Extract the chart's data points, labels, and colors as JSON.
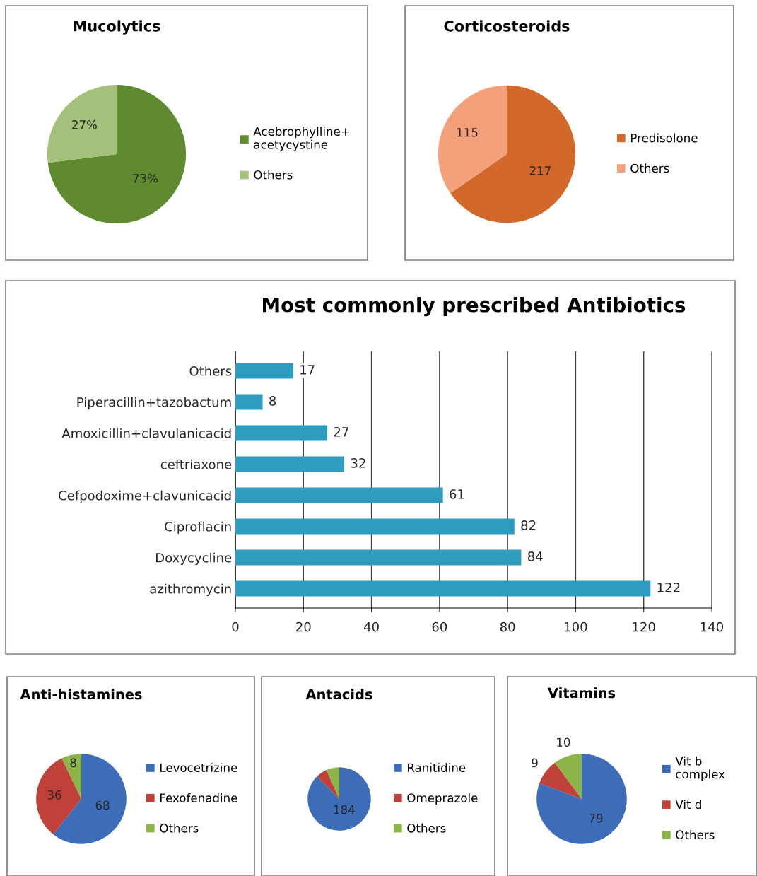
{
  "chart_data": [
    {
      "type": "pie",
      "title": "Mucolytics",
      "categories": [
        "Acebrophylline+ acetycystine",
        "Others"
      ],
      "values": [
        73,
        27
      ],
      "colors": [
        "#5f8a2f",
        "#a3c17a"
      ],
      "value_labels": [
        "73%",
        "27%"
      ],
      "legend": "right"
    },
    {
      "type": "pie",
      "title": "Corticosteroids",
      "categories": [
        "Predisolone",
        "Others"
      ],
      "values": [
        217,
        115
      ],
      "colors": [
        "#d2692b",
        "#f4a07a"
      ],
      "data_labels": true,
      "legend": "right"
    },
    {
      "type": "bar",
      "orientation": "horizontal",
      "title": "Most commonly prescribed Antibiotics",
      "categories": [
        "Others",
        "Piperacillin+tazobactum",
        "Amoxicillin+clavulanicacid",
        "ceftriaxone",
        "Cefpodoxime+clavunicacid",
        "Ciproflacin",
        "Doxycycline",
        "azithromycin"
      ],
      "values": [
        17,
        8,
        27,
        32,
        61,
        82,
        84,
        122
      ],
      "color": "#2e9cc0",
      "xlim": [
        0,
        140
      ],
      "xticks": [
        0,
        20,
        40,
        60,
        80,
        100,
        120,
        140
      ],
      "grid": "x",
      "data_labels": true,
      "legend": false
    },
    {
      "type": "pie",
      "title": "Anti-histamines",
      "categories": [
        "Levocetrizine",
        "Fexofenadine",
        "Others"
      ],
      "values": [
        68,
        36,
        8
      ],
      "colors": [
        "#3d6cb9",
        "#c0403a",
        "#8db446"
      ],
      "data_labels": true,
      "legend": "right"
    },
    {
      "type": "pie",
      "title": "Antacids",
      "categories": [
        "Ranitidine",
        "Omeprazole",
        "Others"
      ],
      "values": [
        184,
        12,
        14
      ],
      "colors": [
        "#3d6cb9",
        "#c0403a",
        "#8db446"
      ],
      "value_labels": [
        "184",
        null,
        null
      ],
      "legend": "right"
    },
    {
      "type": "pie",
      "title": "Vitamins",
      "categories": [
        "Vit b complex",
        "Vit d",
        "Others"
      ],
      "values": [
        79,
        9,
        10
      ],
      "colors": [
        "#3d6cb9",
        "#c0403a",
        "#8db446"
      ],
      "data_labels": true,
      "legend": "right"
    }
  ]
}
